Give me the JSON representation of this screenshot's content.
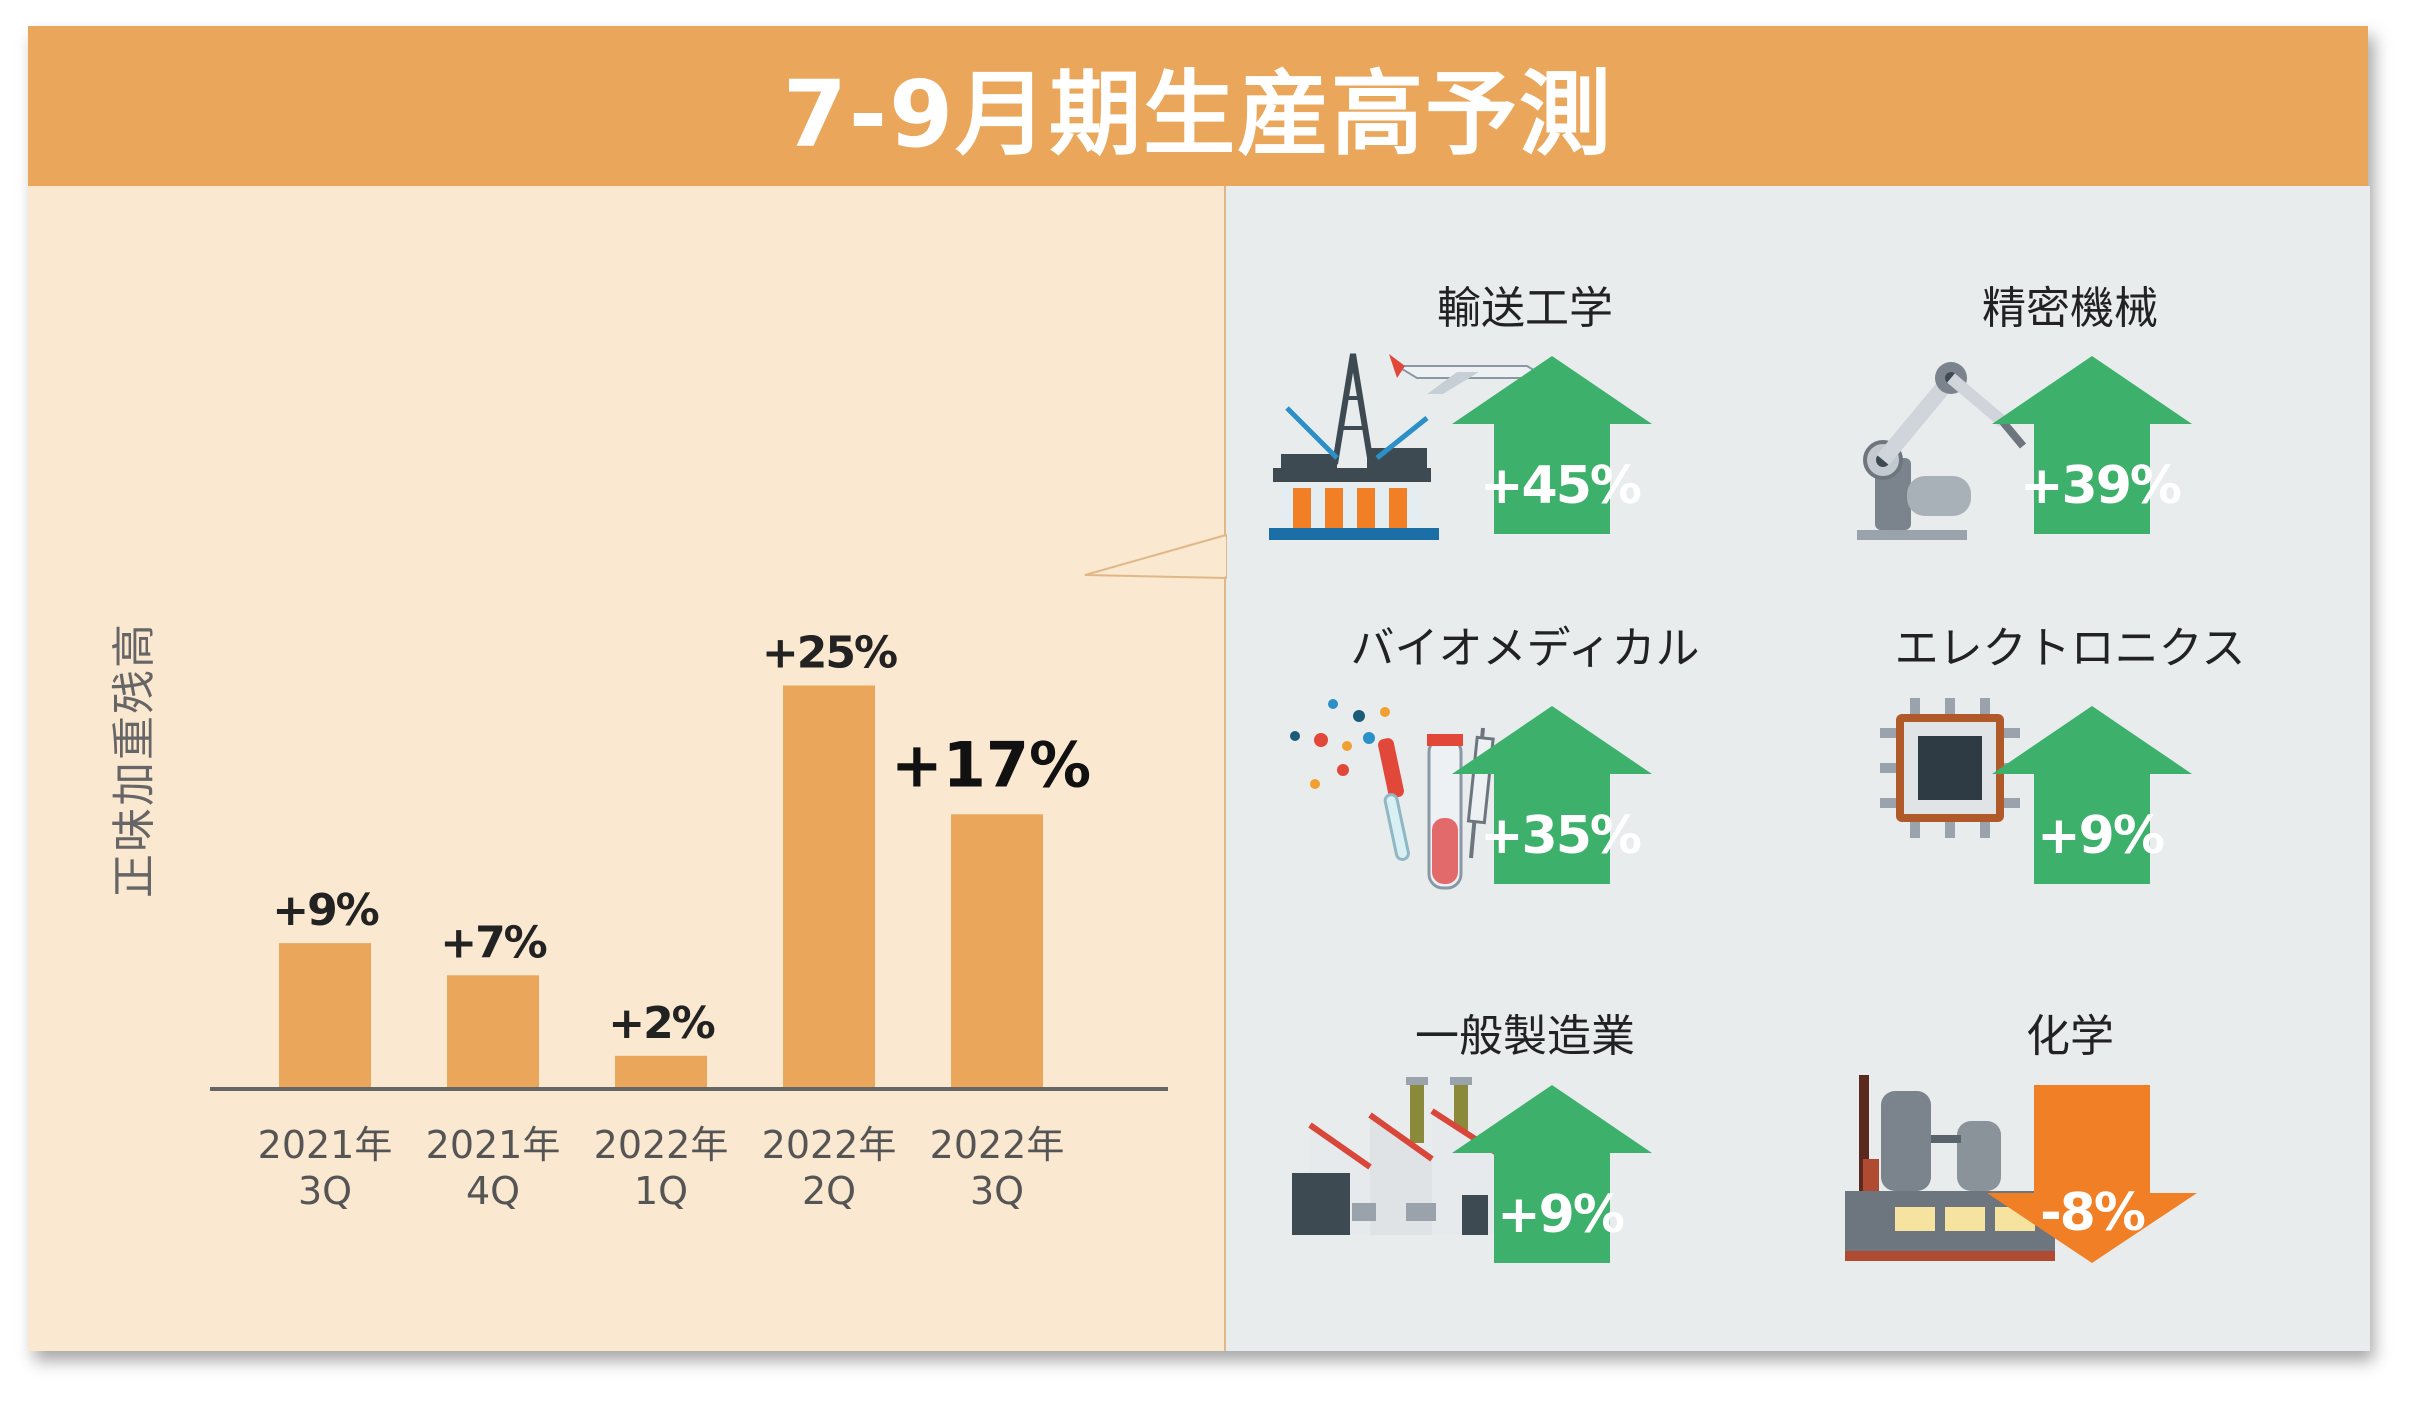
{
  "title": "7-9月期生産高予測",
  "chart_data": {
    "type": "bar",
    "ylabel": "正味加重残高",
    "categories": [
      [
        "2021年",
        "3Q"
      ],
      [
        "2021年",
        "4Q"
      ],
      [
        "2022年",
        "1Q"
      ],
      [
        "2022年",
        "2Q"
      ],
      [
        "2022年",
        "3Q"
      ]
    ],
    "values": [
      9,
      7,
      2,
      25,
      17
    ],
    "value_labels": [
      "+9%",
      "+7%",
      "+2%",
      "+25%",
      "+17%"
    ],
    "highlight_index": 4,
    "color": "#eaa75c"
  },
  "sectors": [
    {
      "name": "輸送工学",
      "label": "+45%",
      "direction": "up",
      "icon": "oil-rig-and-airplane-icon"
    },
    {
      "name": "精密機械",
      "label": "+39%",
      "direction": "up",
      "icon": "robot-arm-icon"
    },
    {
      "name": "バイオメディカル",
      "label": "+35%",
      "direction": "up",
      "icon": "medical-lab-icon"
    },
    {
      "name": "エレクトロニクス",
      "label": "+9%",
      "direction": "up",
      "icon": "microchip-icon"
    },
    {
      "name": "一般製造業",
      "label": "+9%",
      "direction": "up",
      "icon": "factory-icon"
    },
    {
      "name": "化学",
      "label": "-8%",
      "direction": "down",
      "icon": "chemical-plant-icon"
    }
  ],
  "colors": {
    "up": "#3db06b",
    "down": "#f07f25",
    "accent": "#eaa75c"
  }
}
